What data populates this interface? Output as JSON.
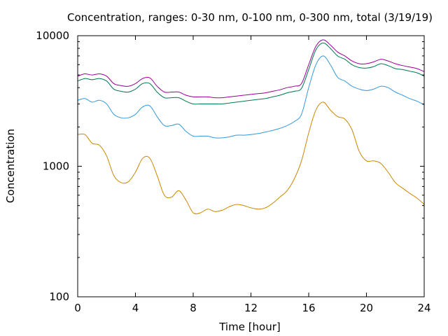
{
  "chart_data": {
    "type": "line",
    "title": "Concentration, ranges: 0-30 nm, 0-100 nm, 0-300 nm, total (3/19/19)",
    "xlabel": "Time [hour]",
    "ylabel": "Concentration",
    "xlim": [
      0,
      24
    ],
    "ylim": [
      100,
      10000
    ],
    "yscale": "log",
    "grid": false,
    "xticks": [
      0,
      4,
      8,
      12,
      16,
      20,
      24
    ],
    "yticks": [
      100,
      1000,
      10000
    ],
    "x": [
      0,
      0.5,
      1,
      1.5,
      2,
      2.5,
      3,
      3.5,
      4,
      4.5,
      5,
      5.5,
      6,
      6.5,
      7,
      7.5,
      8,
      8.5,
      9,
      9.5,
      10,
      10.5,
      11,
      11.5,
      12,
      12.5,
      13,
      13.5,
      14,
      14.5,
      15,
      15.5,
      16,
      16.5,
      17,
      17.5,
      18,
      18.5,
      19,
      19.5,
      20,
      20.5,
      21,
      21.5,
      22,
      22.5,
      23,
      23.5,
      24
    ],
    "series": [
      {
        "color": "#cc8800",
        "values": [
          1750,
          1750,
          1500,
          1450,
          1200,
          850,
          750,
          760,
          900,
          1150,
          1150,
          850,
          600,
          580,
          650,
          550,
          440,
          440,
          470,
          450,
          460,
          490,
          510,
          500,
          480,
          470,
          480,
          520,
          580,
          650,
          800,
          1100,
          1800,
          2700,
          3100,
          2700,
          2400,
          2300,
          1900,
          1300,
          1100,
          1100,
          1050,
          900,
          750,
          680,
          620,
          570,
          510
        ]
      },
      {
        "color": "#3399dd",
        "values": [
          3200,
          3300,
          3100,
          3200,
          3000,
          2500,
          2350,
          2350,
          2500,
          2850,
          2900,
          2400,
          2050,
          2050,
          2100,
          1850,
          1700,
          1700,
          1700,
          1650,
          1650,
          1680,
          1730,
          1730,
          1750,
          1780,
          1830,
          1880,
          1950,
          2050,
          2200,
          2500,
          4000,
          6000,
          7000,
          6000,
          4800,
          4500,
          4100,
          3900,
          3800,
          3900,
          4100,
          4000,
          3700,
          3500,
          3300,
          3150,
          2950
        ]
      },
      {
        "color": "#007755",
        "values": [
          4500,
          4700,
          4600,
          4700,
          4500,
          3900,
          3750,
          3700,
          3900,
          4300,
          4300,
          3700,
          3350,
          3350,
          3350,
          3150,
          3000,
          3000,
          3000,
          3000,
          3000,
          3050,
          3100,
          3150,
          3200,
          3250,
          3300,
          3400,
          3500,
          3650,
          3750,
          3950,
          5500,
          7800,
          8800,
          8000,
          7000,
          6600,
          6000,
          5700,
          5650,
          5800,
          6100,
          5900,
          5600,
          5500,
          5350,
          5200,
          4900
        ]
      },
      {
        "color": "#990099",
        "values": [
          4900,
          5100,
          5000,
          5100,
          4900,
          4300,
          4150,
          4100,
          4300,
          4700,
          4750,
          4100,
          3700,
          3700,
          3700,
          3500,
          3400,
          3400,
          3400,
          3350,
          3350,
          3400,
          3450,
          3500,
          3550,
          3600,
          3650,
          3750,
          3850,
          4000,
          4100,
          4300,
          6000,
          8300,
          9300,
          8500,
          7500,
          7000,
          6400,
          6100,
          6100,
          6300,
          6600,
          6400,
          6100,
          5900,
          5750,
          5600,
          5300
        ]
      }
    ]
  }
}
